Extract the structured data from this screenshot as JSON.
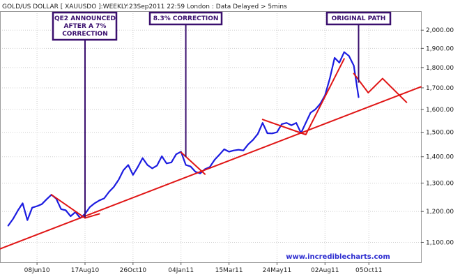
{
  "chart_data": {
    "type": "line",
    "title": "GOLD/US DOLLAR [ XAUUSDO ]:WEEKLY:23Sep2011 22:59 London : Data Delayed > 5mins",
    "credit": "www.incrediblecharts.com",
    "y_scale": "log",
    "ylim": [
      1040,
      2110
    ],
    "y_ticks": [
      "1,100.00",
      "1,200.00",
      "1,300.00",
      "1,400.00",
      "1,500.00",
      "1,600.00",
      "1,700.00",
      "1,800.00",
      "1,900.00",
      "2,000.00"
    ],
    "y_tick_values": [
      1100,
      1200,
      1300,
      1400,
      1500,
      1600,
      1700,
      1800,
      1900,
      2000
    ],
    "x_ticks": [
      "08Jun10",
      "17Aug10",
      "26Oct10",
      "04Jan11",
      "15Mar11",
      "24May11",
      "02Aug11",
      "05Oct11"
    ],
    "x_tick_dates": [
      "2010-06-08",
      "2010-08-17",
      "2010-10-26",
      "2011-01-04",
      "2011-03-15",
      "2011-05-24",
      "2011-08-02",
      "2011-10-05"
    ],
    "xlim": [
      "2010-04-15",
      "2011-12-20"
    ],
    "grid": true,
    "series": [
      {
        "color": "#1c1ce0",
        "points": [
          [
            "2010-04-27",
            1153
          ],
          [
            "2010-05-04",
            1175
          ],
          [
            "2010-05-11",
            1203
          ],
          [
            "2010-05-18",
            1228
          ],
          [
            "2010-05-25",
            1171
          ],
          [
            "2010-06-01",
            1213
          ],
          [
            "2010-06-08",
            1218
          ],
          [
            "2010-06-15",
            1225
          ],
          [
            "2010-06-22",
            1242
          ],
          [
            "2010-06-29",
            1258
          ],
          [
            "2010-07-06",
            1244
          ],
          [
            "2010-07-13",
            1208
          ],
          [
            "2010-07-20",
            1204
          ],
          [
            "2010-07-27",
            1184
          ],
          [
            "2010-08-03",
            1198
          ],
          [
            "2010-08-10",
            1178
          ],
          [
            "2010-08-17",
            1192
          ],
          [
            "2010-08-24",
            1215
          ],
          [
            "2010-08-31",
            1228
          ],
          [
            "2010-09-07",
            1238
          ],
          [
            "2010-09-14",
            1245
          ],
          [
            "2010-09-21",
            1268
          ],
          [
            "2010-09-28",
            1286
          ],
          [
            "2010-10-05",
            1312
          ],
          [
            "2010-10-12",
            1348
          ],
          [
            "2010-10-19",
            1368
          ],
          [
            "2010-10-26",
            1330
          ],
          [
            "2010-11-02",
            1360
          ],
          [
            "2010-11-09",
            1395
          ],
          [
            "2010-11-16",
            1368
          ],
          [
            "2010-11-23",
            1355
          ],
          [
            "2010-11-30",
            1366
          ],
          [
            "2010-12-07",
            1402
          ],
          [
            "2010-12-14",
            1374
          ],
          [
            "2010-12-21",
            1378
          ],
          [
            "2010-12-28",
            1410
          ],
          [
            "2011-01-04",
            1420
          ],
          [
            "2011-01-11",
            1368
          ],
          [
            "2011-01-18",
            1362
          ],
          [
            "2011-01-25",
            1342
          ],
          [
            "2011-02-01",
            1336
          ],
          [
            "2011-02-08",
            1352
          ],
          [
            "2011-02-15",
            1360
          ],
          [
            "2011-02-22",
            1388
          ],
          [
            "2011-03-01",
            1408
          ],
          [
            "2011-03-08",
            1430
          ],
          [
            "2011-03-15",
            1420
          ],
          [
            "2011-03-22",
            1425
          ],
          [
            "2011-03-29",
            1428
          ],
          [
            "2011-04-05",
            1425
          ],
          [
            "2011-04-12",
            1450
          ],
          [
            "2011-04-19",
            1468
          ],
          [
            "2011-04-26",
            1493
          ],
          [
            "2011-05-03",
            1540
          ],
          [
            "2011-05-10",
            1496
          ],
          [
            "2011-05-17",
            1495
          ],
          [
            "2011-05-24",
            1500
          ],
          [
            "2011-05-31",
            1535
          ],
          [
            "2011-06-07",
            1540
          ],
          [
            "2011-06-14",
            1530
          ],
          [
            "2011-06-21",
            1540
          ],
          [
            "2011-06-28",
            1497
          ],
          [
            "2011-07-05",
            1540
          ],
          [
            "2011-07-12",
            1585
          ],
          [
            "2011-07-19",
            1600
          ],
          [
            "2011-07-26",
            1625
          ],
          [
            "2011-08-02",
            1664
          ],
          [
            "2011-08-09",
            1745
          ],
          [
            "2011-08-16",
            1850
          ],
          [
            "2011-08-23",
            1825
          ],
          [
            "2011-08-30",
            1880
          ],
          [
            "2011-09-06",
            1860
          ],
          [
            "2011-09-13",
            1810
          ],
          [
            "2011-09-20",
            1656
          ]
        ]
      },
      {
        "color": "#e01515",
        "points": [
          [
            "2010-04-15",
            1080
          ],
          [
            "2011-12-20",
            1705
          ]
        ]
      },
      {
        "color": "#e01515",
        "points": [
          [
            "2010-06-29",
            1258
          ],
          [
            "2010-08-17",
            1178
          ],
          [
            "2010-09-07",
            1192
          ]
        ]
      },
      {
        "color": "#e01515",
        "points": [
          [
            "2011-01-04",
            1418
          ],
          [
            "2011-02-08",
            1333
          ]
        ]
      },
      {
        "color": "#e01515",
        "points": [
          [
            "2011-05-03",
            1555
          ],
          [
            "2011-07-05",
            1490
          ],
          [
            "2011-08-30",
            1845
          ]
        ]
      },
      {
        "color": "#e01515",
        "points": [
          [
            "2011-09-13",
            1770
          ],
          [
            "2011-10-04",
            1677
          ],
          [
            "2011-10-25",
            1745
          ],
          [
            "2011-11-29",
            1632
          ]
        ]
      }
    ],
    "annotations": [
      {
        "lines": [
          "QE2 ANNOUNCED",
          "AFTER A 7%",
          "CORRECTION"
        ],
        "point": [
          "2010-08-17",
          1180
        ]
      },
      {
        "lines": [
          "8.3% CORRECTION"
        ],
        "point": [
          "2011-01-11",
          1400
        ]
      },
      {
        "lines": [
          "ORIGINAL PATH"
        ],
        "point": [
          "2011-09-20",
          1725
        ]
      }
    ]
  }
}
